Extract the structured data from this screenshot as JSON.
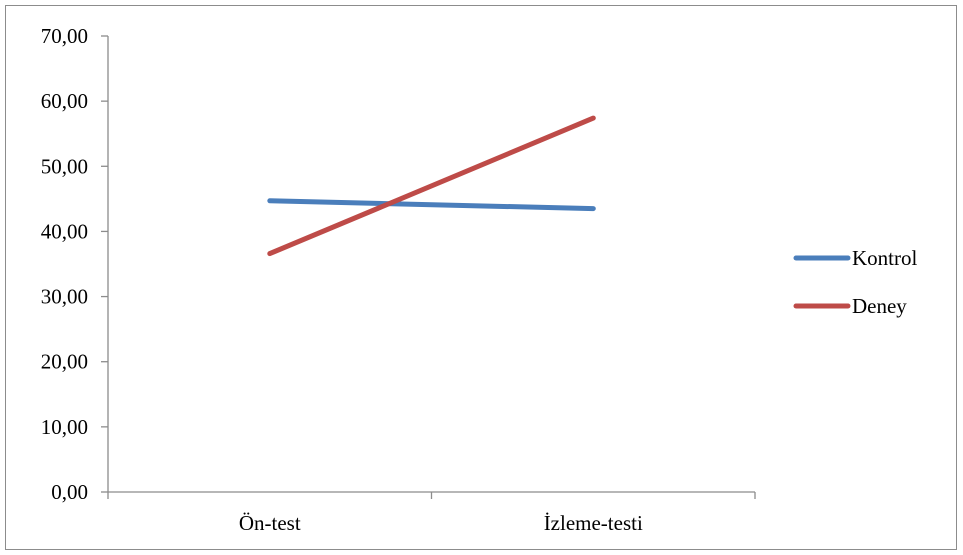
{
  "chart_data": {
    "type": "line",
    "title": "",
    "xlabel": "",
    "ylabel": "",
    "categories": [
      "Ön-test",
      "İzleme-testi"
    ],
    "ylim": [
      0,
      70
    ],
    "ytick_values": [
      0,
      10,
      20,
      30,
      40,
      50,
      60,
      70
    ],
    "ytick_labels": [
      "0,00",
      "10,00",
      "20,00",
      "30,00",
      "40,00",
      "50,00",
      "60,00",
      "70,00"
    ],
    "grid": false,
    "legend_position": "right",
    "series": [
      {
        "name": "Kontrol",
        "values": [
          44.7,
          43.5
        ],
        "color": "#4a7ebb"
      },
      {
        "name": "Deney",
        "values": [
          36.6,
          57.4
        ],
        "color": "#be4b48"
      }
    ]
  }
}
